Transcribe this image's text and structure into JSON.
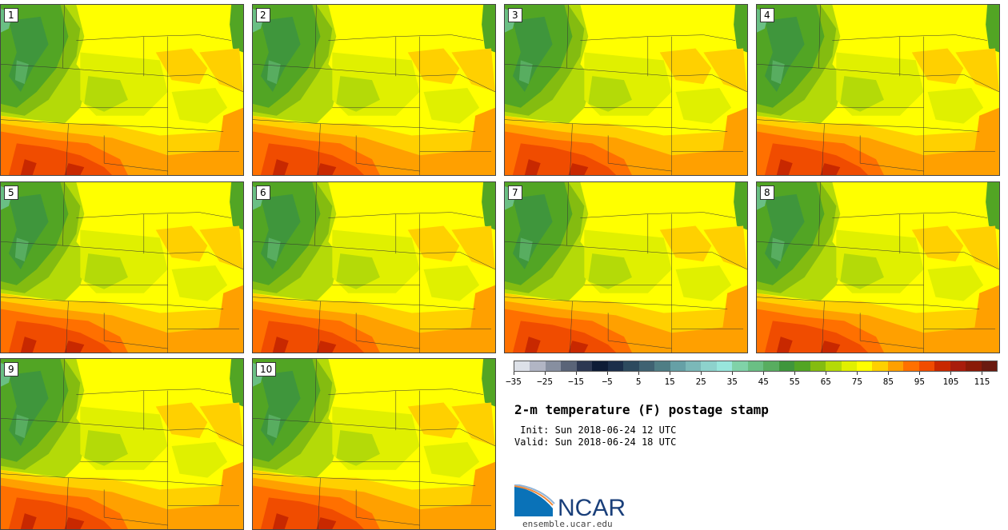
{
  "panels": [
    "1",
    "2",
    "3",
    "4",
    "5",
    "6",
    "7",
    "8",
    "9",
    "10"
  ],
  "chart_data": {
    "type": "heatmap",
    "title": "2-m temperature (F) postage stamp",
    "colorbar": {
      "min": -35,
      "max": 120,
      "step": 5,
      "tick_labels": [
        "−35",
        "−25",
        "−15",
        "−5",
        "5",
        "15",
        "25",
        "35",
        "45",
        "55",
        "65",
        "75",
        "85",
        "95",
        "105",
        "115"
      ],
      "colors": [
        "#dde1e8",
        "#b1b5c4",
        "#878fa0",
        "#5a6478",
        "#2d3852",
        "#0e1c36",
        "#1b2e4a",
        "#2d4a5e",
        "#3f6272",
        "#4f7e85",
        "#66a0a6",
        "#7bb8b8",
        "#8dd2cc",
        "#98e6dc",
        "#80d2a8",
        "#6abf84",
        "#58ad60",
        "#3f963c",
        "#52a524",
        "#84bc10",
        "#b4da08",
        "#e0f000",
        "#ffff00",
        "#ffd000",
        "#ffa000",
        "#ff7000",
        "#f04c00",
        "#c82800",
        "#a81c0c",
        "#8a1a08",
        "#6a1a10"
      ]
    }
  },
  "init": " Init: Sun 2018-06-24 12 UTC",
  "valid": "Valid: Sun 2018-06-24 18 UTC",
  "logo": {
    "text": "NCAR",
    "url": "ensemble.ucar.edu"
  }
}
